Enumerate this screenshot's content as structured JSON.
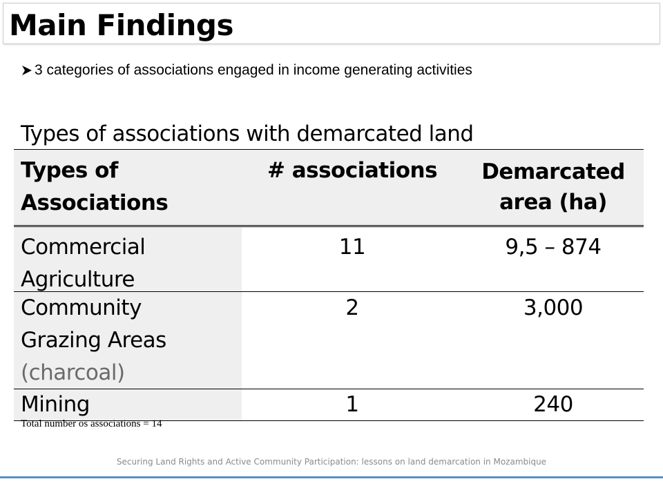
{
  "slide": {
    "title": "Main Findings",
    "bullet": "3 categories of associations  engaged in income generating activities",
    "table_caption": "Types of associations with demarcated land",
    "table": {
      "headers": [
        "Types of Associations",
        "# associations",
        "Demarcated area (ha)"
      ],
      "header_lines": {
        "c1": [
          "Types of",
          "Associations"
        ],
        "c3": [
          "Demarcated",
          "area (ha)"
        ]
      },
      "rows": [
        {
          "type_lines": [
            "Commercial",
            "Agriculture"
          ],
          "count": "11",
          "area": "9,5 – 874"
        },
        {
          "type_lines": [
            "Community",
            "Grazing Areas",
            "(charcoal)"
          ],
          "count": "2",
          "area": "3,000"
        },
        {
          "type_lines": [
            "Mining"
          ],
          "count": "1",
          "area": "240"
        }
      ]
    },
    "note": "Total number os associations = 14",
    "footer": "Securing Land Rights and Active Community Participation: lessons on land demarcation in Mozambique",
    "colors": {
      "footer_line": "#5b8fc7",
      "header_fill": "#efefef"
    }
  }
}
